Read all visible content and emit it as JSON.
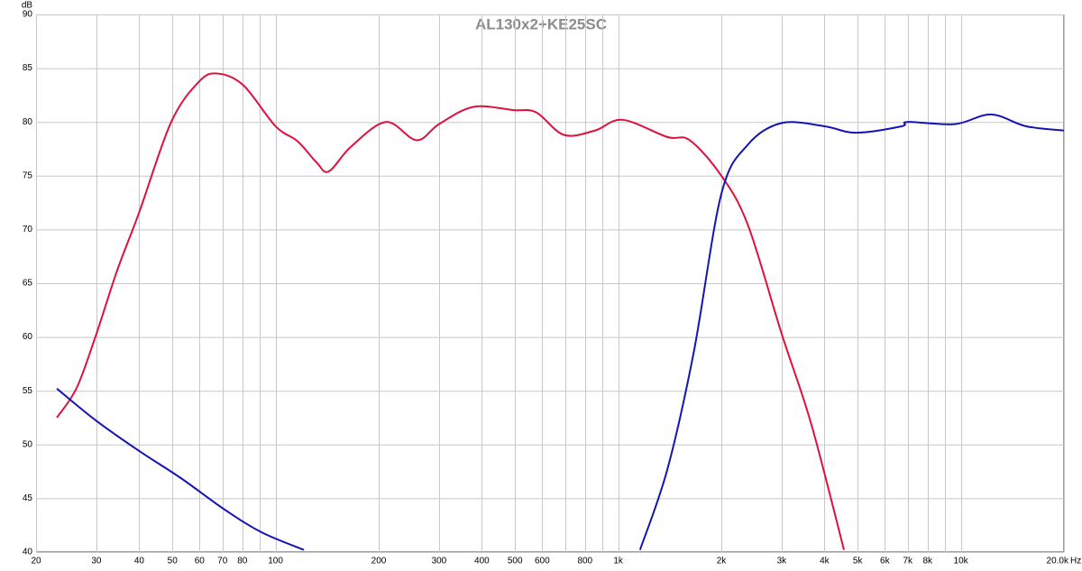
{
  "chart_data": {
    "type": "line",
    "title": "AL130x2+KE25SC",
    "ylabel": "dB",
    "xlabel": "Hz",
    "log_x": true,
    "grid": true,
    "xlim": [
      20,
      20000
    ],
    "ylim": [
      40,
      90
    ],
    "yticks": [
      40,
      45,
      50,
      55,
      60,
      65,
      70,
      75,
      80,
      85,
      90
    ],
    "xticks": [
      20,
      30,
      40,
      50,
      60,
      70,
      80,
      {
        "value": 90,
        "label": null
      },
      100,
      200,
      300,
      400,
      500,
      600,
      {
        "value": 700,
        "label": null
      },
      800,
      {
        "value": 900,
        "label": null
      },
      {
        "value": 1000,
        "label": "1k"
      },
      {
        "value": 2000,
        "label": "2k"
      },
      {
        "value": 3000,
        "label": "3k"
      },
      {
        "value": 4000,
        "label": "4k"
      },
      {
        "value": 5000,
        "label": "5k"
      },
      {
        "value": 6000,
        "label": "6k"
      },
      {
        "value": 7000,
        "label": "7k"
      },
      {
        "value": 8000,
        "label": "8k"
      },
      {
        "value": 9000,
        "label": null
      },
      {
        "value": 10000,
        "label": "10k"
      },
      {
        "value": 20000,
        "label": "20.0k"
      }
    ],
    "series": [
      {
        "color": "#e0103c",
        "x": [
          23,
          26.3,
          30,
          34.5,
          40,
          49.6,
          60,
          68,
          80.6,
          100,
          116,
          132,
          143,
          166,
          210,
          258,
          300,
          378,
          496,
          576,
          694,
          855,
          1030,
          1392,
          1617,
          2000,
          2392,
          3000,
          3660,
          4560
        ],
        "values": [
          52.5,
          55.3,
          60.3,
          66.2,
          71.6,
          80,
          83.8,
          84.5,
          83.4,
          79.6,
          78.2,
          76.2,
          75.4,
          77.7,
          80,
          78.3,
          79.8,
          81.4,
          81.1,
          80.9,
          78.8,
          79.2,
          80.2,
          78.6,
          78.3,
          75,
          70.4,
          60.3,
          51.9,
          40.2
        ]
      },
      {
        "color": "#1414b4",
        "x": [
          23,
          30,
          40,
          52.8,
          71.4,
          91.5,
          121,
          null,
          1158,
          1392,
          1662,
          2000,
          2392,
          3000,
          4000,
          4940,
          6720,
          7000,
          9620,
          12240,
          15500,
          20000
        ],
        "values": [
          55.2,
          52.2,
          49.4,
          46.9,
          43.9,
          41.8,
          40.2,
          null,
          40.2,
          47.7,
          58.6,
          73.3,
          77.9,
          79.9,
          79.6,
          79,
          79.6,
          80,
          79.8,
          80.7,
          79.6,
          79.2
        ]
      }
    ]
  }
}
